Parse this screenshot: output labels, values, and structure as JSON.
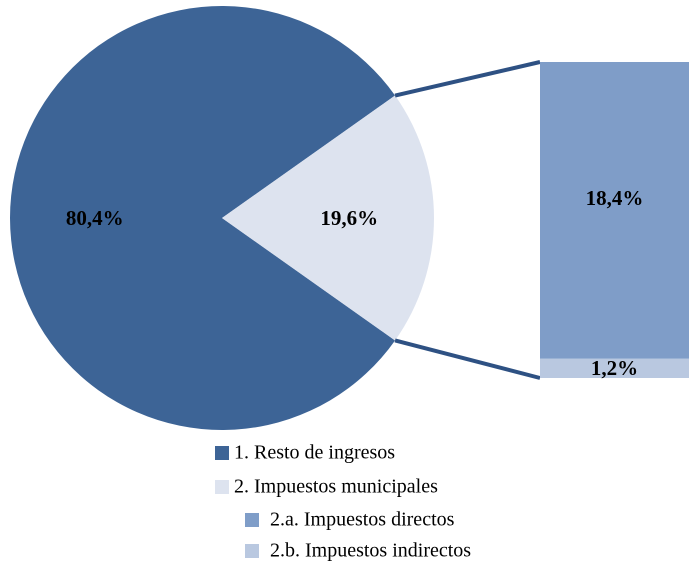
{
  "chart_data": {
    "type": "pie",
    "categories": [
      "1. Resto de ingresos",
      "2. Impuestos municipales"
    ],
    "values": [
      80.4,
      19.6
    ],
    "value_labels": [
      "80,4%",
      "19,6%"
    ],
    "colors": [
      "#3d6496",
      "#dde3ef"
    ],
    "breakdown": {
      "categories": [
        "2.a. Impuestos directos",
        "2.b. Impuestos indirectos"
      ],
      "values": [
        18.4,
        1.2
      ],
      "value_labels": [
        "18,4%",
        "1,2%"
      ],
      "colors": [
        "#7f9dc8",
        "#b9c8e0"
      ]
    }
  }
}
